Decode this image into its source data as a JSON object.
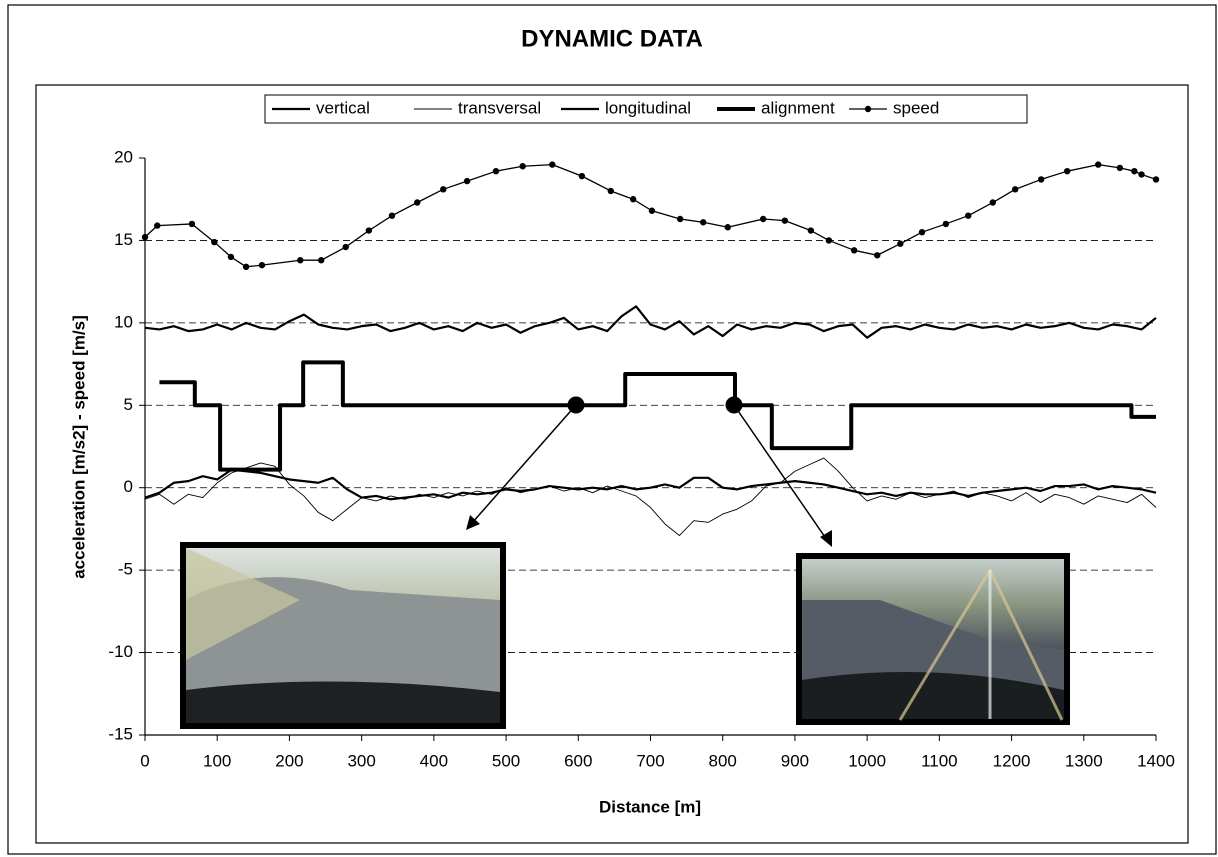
{
  "chart_data": {
    "type": "line",
    "title": "DYNAMIC DATA",
    "x_label": "Distance [m]",
    "y_label": "acceleration [m/s2] - speed [m/s]",
    "xlim": [
      0,
      1400
    ],
    "xticks": [
      0,
      100,
      200,
      300,
      400,
      500,
      600,
      700,
      800,
      900,
      1000,
      1100,
      1200,
      1300,
      1400
    ],
    "ylim": [
      -15,
      20
    ],
    "yticks": [
      -15,
      -10,
      -5,
      0,
      5,
      10,
      15,
      20
    ],
    "grid": true,
    "legend": "top",
    "series": [
      {
        "name": "vertical",
        "color": "#000000",
        "line_width": 2.2,
        "x": [
          0,
          20,
          40,
          60,
          80,
          100,
          120,
          140,
          160,
          180,
          200,
          220,
          240,
          260,
          280,
          300,
          320,
          340,
          360,
          380,
          400,
          420,
          440,
          460,
          480,
          500,
          520,
          540,
          560,
          580,
          600,
          620,
          640,
          660,
          680,
          700,
          720,
          740,
          760,
          780,
          800,
          820,
          840,
          860,
          880,
          900,
          920,
          940,
          960,
          980,
          1000,
          1020,
          1040,
          1060,
          1080,
          1100,
          1120,
          1140,
          1160,
          1180,
          1200,
          1220,
          1240,
          1260,
          1280,
          1300,
          1320,
          1340,
          1360,
          1380,
          1400
        ],
        "values": [
          9.7,
          9.6,
          9.8,
          9.5,
          9.6,
          9.9,
          9.6,
          10.0,
          9.7,
          9.6,
          10.1,
          10.5,
          9.9,
          9.7,
          9.6,
          9.8,
          9.9,
          9.5,
          9.7,
          10.0,
          9.6,
          9.8,
          9.5,
          10.0,
          9.7,
          9.9,
          9.4,
          9.8,
          10.0,
          10.3,
          9.6,
          9.8,
          9.5,
          10.4,
          11.0,
          9.9,
          9.6,
          10.1,
          9.3,
          9.8,
          9.2,
          9.9,
          9.6,
          9.8,
          9.7,
          10.0,
          9.9,
          9.5,
          9.8,
          9.9,
          9.1,
          9.7,
          9.8,
          9.6,
          9.9,
          9.7,
          9.6,
          9.9,
          9.7,
          9.8,
          9.6,
          9.9,
          9.7,
          9.8,
          10.0,
          9.7,
          9.6,
          9.9,
          9.8,
          9.6,
          10.3
        ]
      },
      {
        "name": "transversal",
        "color": "#000000",
        "line_width": 0.9,
        "x": [
          0,
          20,
          40,
          60,
          80,
          100,
          120,
          140,
          160,
          180,
          200,
          220,
          240,
          260,
          280,
          300,
          320,
          340,
          360,
          380,
          400,
          420,
          440,
          460,
          480,
          500,
          520,
          540,
          560,
          580,
          600,
          620,
          640,
          660,
          680,
          700,
          720,
          740,
          760,
          780,
          800,
          820,
          840,
          860,
          880,
          900,
          920,
          940,
          960,
          980,
          1000,
          1020,
          1040,
          1060,
          1080,
          1100,
          1120,
          1140,
          1160,
          1180,
          1200,
          1220,
          1240,
          1260,
          1280,
          1300,
          1320,
          1340,
          1360,
          1380,
          1400
        ],
        "values": [
          -0.7,
          -0.4,
          -1.0,
          -0.4,
          -0.6,
          0.3,
          0.9,
          1.2,
          1.5,
          1.3,
          0.2,
          -0.5,
          -1.5,
          -2.0,
          -1.3,
          -0.6,
          -0.8,
          -0.5,
          -0.7,
          -0.4,
          -0.6,
          -0.3,
          -0.5,
          -0.2,
          -0.4,
          0.0,
          -0.3,
          -0.1,
          0.1,
          -0.2,
          0.0,
          -0.3,
          0.1,
          -0.2,
          -0.5,
          -1.2,
          -2.2,
          -2.9,
          -2.0,
          -2.1,
          -1.6,
          -1.3,
          -0.8,
          0.1,
          0.3,
          1.0,
          1.4,
          1.8,
          1.0,
          0.0,
          -0.8,
          -0.5,
          -0.7,
          -0.3,
          -0.6,
          -0.4,
          -0.2,
          -0.6,
          -0.3,
          -0.5,
          -0.8,
          -0.3,
          -0.9,
          -0.4,
          -0.6,
          -1.0,
          -0.5,
          -0.7,
          -0.9,
          -0.4,
          -1.2
        ]
      },
      {
        "name": "longitudinal",
        "color": "#000000",
        "line_width": 2.2,
        "x": [
          0,
          20,
          40,
          60,
          80,
          100,
          120,
          140,
          160,
          180,
          200,
          220,
          240,
          260,
          280,
          300,
          320,
          340,
          360,
          380,
          400,
          420,
          440,
          460,
          480,
          500,
          520,
          540,
          560,
          580,
          600,
          620,
          640,
          660,
          680,
          700,
          720,
          740,
          760,
          780,
          800,
          820,
          840,
          860,
          880,
          900,
          920,
          940,
          960,
          980,
          1000,
          1020,
          1040,
          1060,
          1080,
          1100,
          1120,
          1140,
          1160,
          1180,
          1200,
          1220,
          1240,
          1260,
          1280,
          1300,
          1320,
          1340,
          1360,
          1380,
          1400
        ],
        "values": [
          -0.6,
          -0.3,
          0.3,
          0.4,
          0.7,
          0.5,
          1.1,
          1.0,
          0.9,
          0.7,
          0.5,
          0.4,
          0.3,
          0.6,
          -0.1,
          -0.6,
          -0.5,
          -0.7,
          -0.6,
          -0.5,
          -0.4,
          -0.6,
          -0.3,
          -0.4,
          -0.3,
          -0.1,
          -0.2,
          -0.1,
          0.1,
          0.0,
          -0.1,
          0.0,
          -0.1,
          0.1,
          -0.1,
          0.0,
          0.2,
          0.0,
          0.6,
          0.6,
          0.0,
          -0.1,
          0.1,
          0.2,
          0.3,
          0.4,
          0.3,
          0.2,
          0.0,
          -0.2,
          -0.4,
          -0.3,
          -0.5,
          -0.3,
          -0.4,
          -0.4,
          -0.3,
          -0.5,
          -0.3,
          -0.2,
          -0.1,
          0.0,
          -0.2,
          0.1,
          0.1,
          0.2,
          -0.1,
          0.1,
          0.0,
          -0.1,
          -0.3
        ]
      },
      {
        "name": "alignment",
        "color": "#000000",
        "line_width": 4,
        "step": true,
        "x": [
          20,
          69,
          104,
          187,
          219,
          274,
          665,
          817,
          868,
          978,
          1366,
          1400
        ],
        "values": [
          6.4,
          5,
          1.1,
          5,
          7.6,
          5,
          6.9,
          5,
          2.4,
          5,
          4.3,
          4.3
        ]
      },
      {
        "name": "speed",
        "color": "#000000",
        "line_width": 1.3,
        "marker": "circle",
        "x": [
          0,
          17,
          65,
          96,
          119,
          140,
          162,
          215,
          244,
          278,
          310,
          342,
          377,
          413,
          446,
          486,
          523,
          564,
          605,
          645,
          676,
          702,
          741,
          773,
          807,
          856,
          886,
          922,
          947,
          982,
          1014,
          1046,
          1076,
          1109,
          1140,
          1174,
          1205,
          1241,
          1277,
          1320,
          1350,
          1370,
          1380,
          1400
        ],
        "values": [
          15.2,
          15.9,
          16.0,
          14.9,
          14.0,
          13.4,
          13.5,
          13.8,
          13.8,
          14.6,
          15.6,
          16.5,
          17.3,
          18.1,
          18.6,
          19.2,
          19.5,
          19.6,
          18.9,
          18.0,
          17.5,
          16.8,
          16.3,
          16.1,
          15.8,
          16.3,
          16.2,
          15.6,
          15.0,
          14.4,
          14.1,
          14.8,
          15.5,
          16.0,
          16.5,
          17.3,
          18.1,
          18.7,
          19.2,
          19.6,
          19.4,
          19.2,
          19.0,
          18.7
        ]
      }
    ]
  }
}
